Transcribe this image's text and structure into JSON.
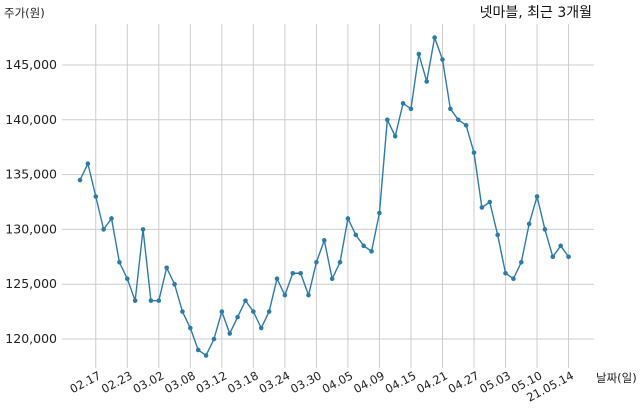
{
  "chart_data": {
    "type": "line",
    "title": "넷마블, 최근 3개월",
    "ylabel": "주가(원)",
    "xlabel": "날짜(일)",
    "ylim": [
      117000,
      149000
    ],
    "yticks": [
      120000,
      125000,
      130000,
      135000,
      140000,
      145000
    ],
    "ytick_labels": [
      "120,000",
      "125,000",
      "130,000",
      "135,000",
      "140,000",
      "145,000"
    ],
    "xtick_labels": [
      "02.17",
      "02.23",
      "03.02",
      "03.08",
      "03.12",
      "03.18",
      "03.24",
      "03.30",
      "04.05",
      "04.09",
      "04.15",
      "04.21",
      "04.27",
      "05.03",
      "05.10",
      "21.05.14"
    ],
    "xtick_index": [
      2,
      6,
      10,
      14,
      18,
      22,
      26,
      30,
      34,
      38,
      42,
      46,
      50,
      54,
      58,
      62
    ],
    "grid": true,
    "line_color": "#2b7bab",
    "series": [
      {
        "values": [
          134500,
          136000,
          133000,
          130000,
          131000,
          127000,
          125500,
          123500,
          130000,
          123500,
          123500,
          126500,
          125000,
          122500,
          121000,
          119000,
          118500,
          120000,
          122500,
          120500,
          122000,
          123500,
          122500,
          121000,
          122500,
          125500,
          124000,
          126000,
          126000,
          124000,
          127000,
          129000,
          125500,
          127000,
          131000,
          129500,
          128500,
          128000,
          131500,
          140000,
          138500,
          141500,
          141000,
          146000,
          143500,
          147500,
          145500,
          141000,
          140000,
          139500,
          137000,
          132000,
          132500,
          129500,
          126000,
          125500,
          127000,
          130500,
          133000,
          130000,
          127500,
          128500,
          127500
        ]
      }
    ]
  }
}
